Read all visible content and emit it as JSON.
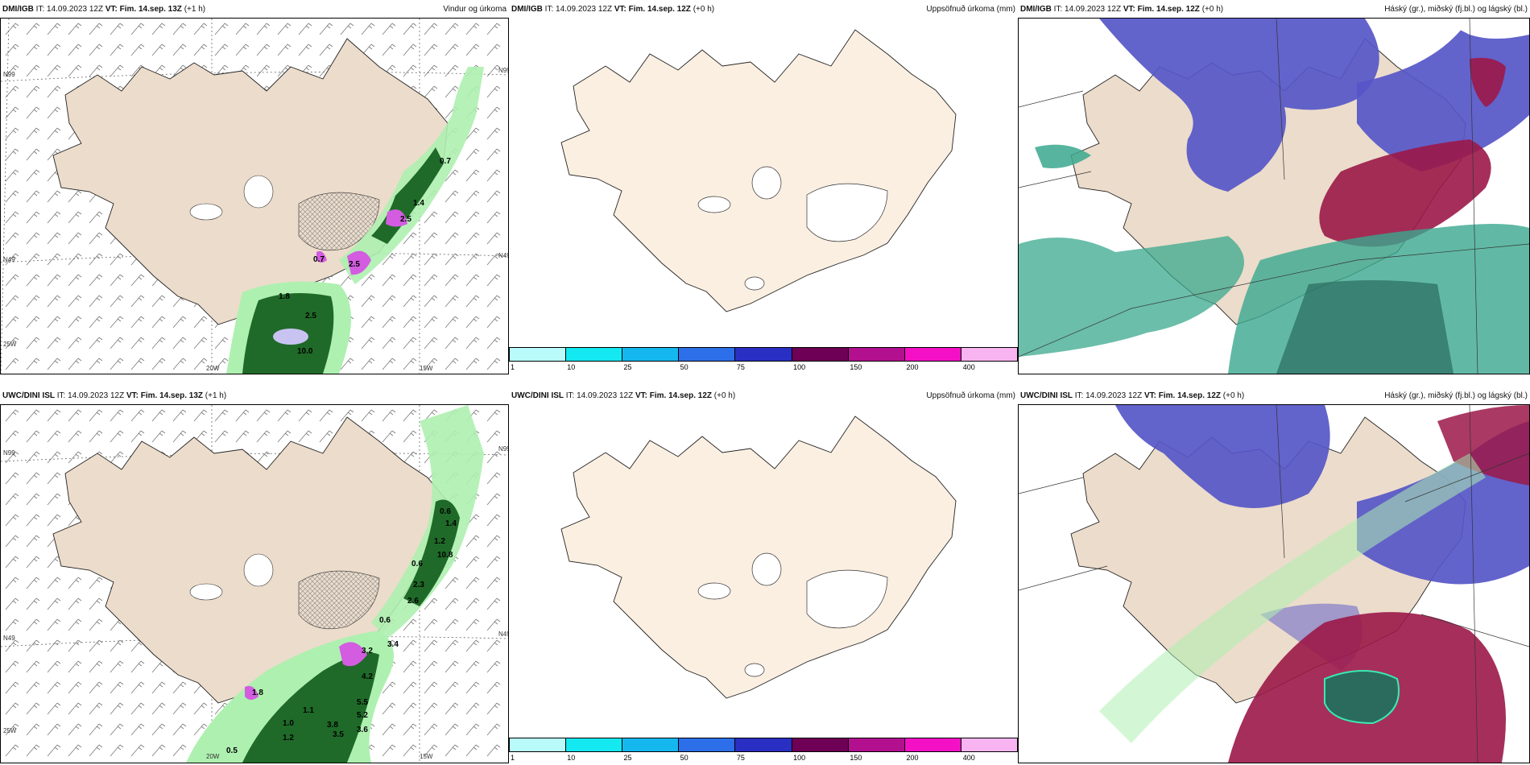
{
  "panels": [
    {
      "model": "DMI/IGB",
      "it_prefix": "IT:",
      "it": "14.09.2023 12Z",
      "vt_prefix": "VT:",
      "vt": "Fim. 14.sep. 13Z",
      "lead": "(+1 h)",
      "product": "Vindur og úrkoma",
      "axis_labels": {
        "lat_top": "N99",
        "lat_mid": "N49",
        "lon_left": "25W",
        "lon_a": "20W",
        "lon_b": "15W",
        "lat_right_top": "N99",
        "lat_right_mid": "N49"
      },
      "precip_values": [
        "0.7",
        "1.4",
        "2.5",
        "0.7",
        "2.5",
        "1.8",
        "2.5",
        "10.0"
      ]
    },
    {
      "model": "DMI/IGB",
      "it_prefix": "IT:",
      "it": "14.09.2023 12Z",
      "vt_prefix": "VT:",
      "vt": "Fim. 14.sep. 12Z",
      "lead": "(+0 h)",
      "product": "Uppsöfnuð úrkoma (mm)"
    },
    {
      "model": "DMI/IGB",
      "it_prefix": "IT:",
      "it": "14.09.2023 12Z",
      "vt_prefix": "VT:",
      "vt": "Fim. 14.sep. 12Z",
      "lead": "(+0 h)",
      "product": "Háský (gr.), miðský (fj.bl.) og lágský (bl.)"
    },
    {
      "model": "UWC/DINI ISL",
      "it_prefix": "IT:",
      "it": "14.09.2023 12Z",
      "vt_prefix": "VT:",
      "vt": "Fim. 14.sep. 13Z",
      "lead": "(+1 h)",
      "product": "",
      "axis_labels": {
        "lat_top": "N99",
        "lat_mid": "N49",
        "lon_left": "25W",
        "lon_a": "20W",
        "lon_b": "15W",
        "lat_right_top": "N99",
        "lat_right_mid": "N49"
      },
      "precip_values": [
        "0.6",
        "1.4",
        "1.2",
        "10.8",
        "0.6",
        "2.3",
        "2.6",
        "0.6",
        "3.4",
        "3.2",
        "4.2",
        "5.5",
        "5.2",
        "3.8",
        "3.6",
        "3.5",
        "1.1",
        "1.0",
        "1.2",
        "0.5",
        "1.8"
      ]
    },
    {
      "model": "UWC/DINI ISL",
      "it_prefix": "IT:",
      "it": "14.09.2023 12Z",
      "vt_prefix": "VT:",
      "vt": "Fim. 14.sep. 12Z",
      "lead": "(+0 h)",
      "product": "Uppsöfnuð úrkoma (mm)"
    },
    {
      "model": "UWC/DINI ISL",
      "it_prefix": "IT:",
      "it": "14.09.2023 12Z",
      "vt_prefix": "VT:",
      "vt": "Fim. 14.sep. 12Z",
      "lead": "(+0 h)",
      "product": "Háský (gr.), miðský (fj.bl.) og lágský (bl.)"
    }
  ],
  "colorbar": {
    "labels": [
      "1",
      "10",
      "25",
      "50",
      "75",
      "100",
      "150",
      "200",
      "400"
    ],
    "colors": [
      "#b9fbfb",
      "#14e8f0",
      "#14b8ef",
      "#2d6fe8",
      "#2a2fc4",
      "#6e0055",
      "#b3108f",
      "#f410c4",
      "#f7b4f1"
    ]
  },
  "colors": {
    "land": "#ecdccb",
    "land_light": "#fbefe2",
    "precip_light": "#aef0b0",
    "precip_dark": "#1f6a28",
    "precip_pink": "#d35ce0",
    "high_cloud": "#5656c8",
    "mid_cloud": "#9b1848",
    "low_cloud": "#3aa88e"
  }
}
